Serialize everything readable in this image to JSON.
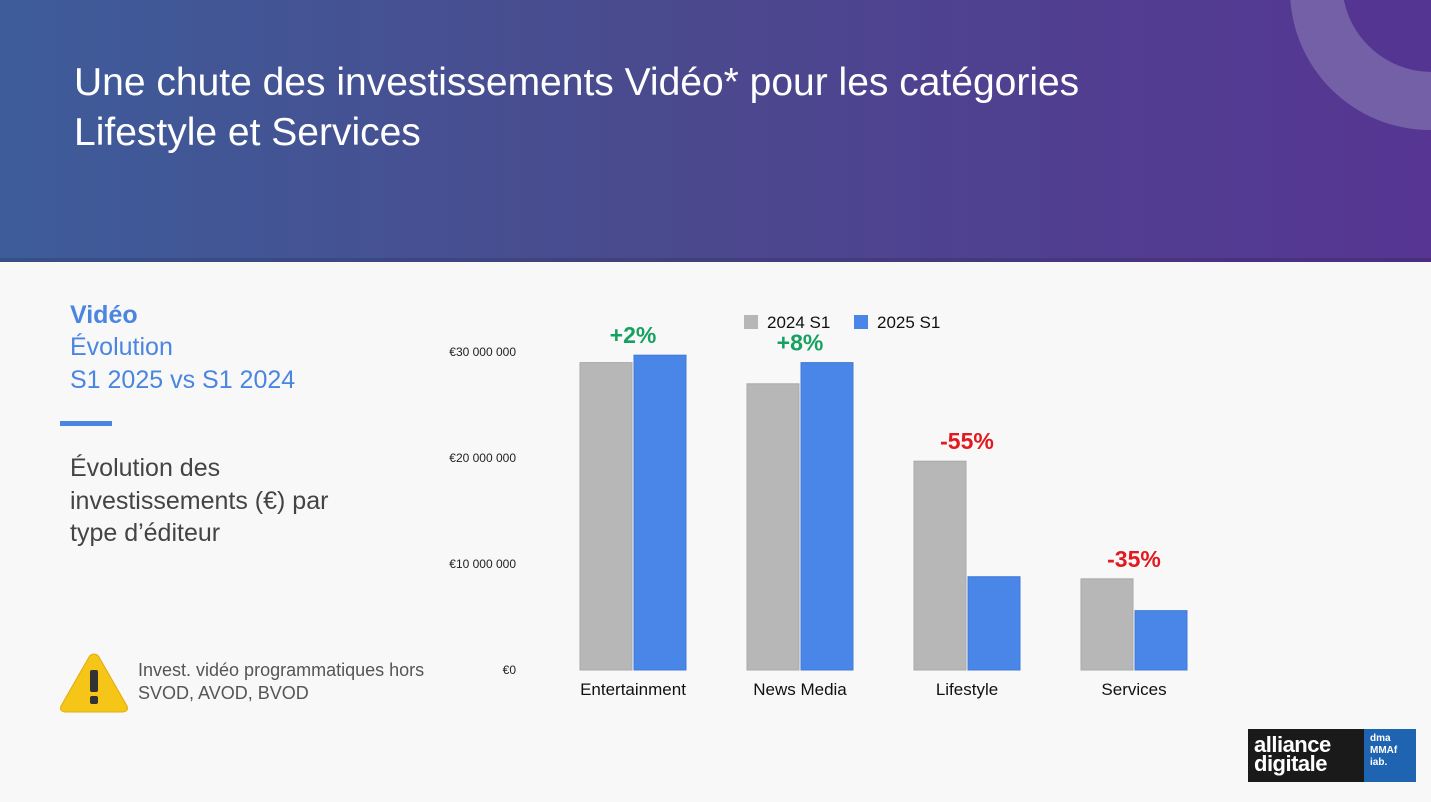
{
  "slide": {
    "title_line1": "Une chute des investissements Vidéo* pour les catégories",
    "title_line2": "Lifestyle et Services",
    "side_title": "Vidéo",
    "side_subtitle1": "Évolution",
    "side_subtitle2": "S1 2025 vs S1 2024",
    "description": "Évolution des investissements (€) par type d’éditeur",
    "note": "Invest. vidéo programmatiques hors SVOD, AVOD, BVOD",
    "logo": {
      "line1": "alliance",
      "line2": "digitale",
      "side1": "dma",
      "side2": "MMAf",
      "side3": "iab."
    },
    "colors": {
      "header_start": "#3e5c9a",
      "header_end": "#563593",
      "accent": "#4a86e0",
      "warning": "#f5c518"
    }
  },
  "chart_data": {
    "type": "bar",
    "categories": [
      "Entertainment",
      "News Media",
      "Lifestyle",
      "Services"
    ],
    "series": [
      {
        "name": "2024 S1",
        "color": "#b7b7b7",
        "values": [
          29000000,
          27000000,
          19700000,
          8600000
        ]
      },
      {
        "name": "2025 S1",
        "color": "#4a86e8",
        "values": [
          29700000,
          29000000,
          8800000,
          5600000
        ]
      }
    ],
    "annotations": [
      {
        "category": "Entertainment",
        "label": "+2%",
        "color": "#16a160"
      },
      {
        "category": "News Media",
        "label": "+8%",
        "color": "#16a160"
      },
      {
        "category": "Lifestyle",
        "label": "-55%",
        "color": "#e4181f"
      },
      {
        "category": "Services",
        "label": "-35%",
        "color": "#e4181f"
      }
    ],
    "y_ticks": [
      {
        "value": 0,
        "label": "€0"
      },
      {
        "value": 10000000,
        "label": "€10 000 000"
      },
      {
        "value": 20000000,
        "label": "€20 000 000"
      },
      {
        "value": 30000000,
        "label": "€30 000 000"
      }
    ],
    "ylim": [
      0,
      30000000
    ],
    "grid": false,
    "legend_position": "top-right"
  }
}
